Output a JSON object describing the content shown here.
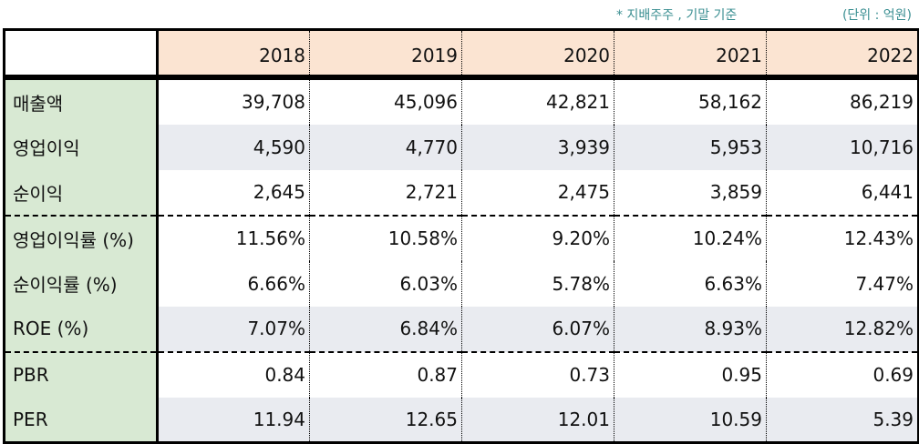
{
  "notes": {
    "basis": "* 지배주주 , 기말 기준",
    "unit": "(단위 : 억원)"
  },
  "table": {
    "columns": [
      "2018",
      "2019",
      "2020",
      "2021",
      "2022"
    ],
    "rows": [
      {
        "label": "매출액",
        "values": [
          "39,708",
          "45,096",
          "42,821",
          "58,162",
          "86,219"
        ]
      },
      {
        "label": "영업이익",
        "values": [
          "4,590",
          "4,770",
          "3,939",
          "5,953",
          "10,716"
        ]
      },
      {
        "label": "순이익",
        "values": [
          "2,645",
          "2,721",
          "2,475",
          "3,859",
          "6,441"
        ]
      },
      {
        "label": "영업이익률 (%)",
        "values": [
          "11.56%",
          "10.58%",
          "9.20%",
          "10.24%",
          "12.43%"
        ]
      },
      {
        "label": "순이익률 (%)",
        "values": [
          "6.66%",
          "6.03%",
          "5.78%",
          "6.63%",
          "7.47%"
        ]
      },
      {
        "label": "ROE (%)",
        "values": [
          "7.07%",
          "6.84%",
          "6.07%",
          "8.93%",
          "12.82%"
        ]
      },
      {
        "label": "PBR",
        "values": [
          "0.84",
          "0.87",
          "0.73",
          "0.95",
          "0.69"
        ]
      },
      {
        "label": "PER",
        "values": [
          "11.94",
          "12.65",
          "12.01",
          "10.59",
          "5.39"
        ]
      }
    ]
  },
  "colors": {
    "header_bg": "#fbe4d2",
    "label_bg": "#d8e9d3",
    "shade_bg": "#e9ebf0",
    "note_text": "#3b8f92"
  }
}
